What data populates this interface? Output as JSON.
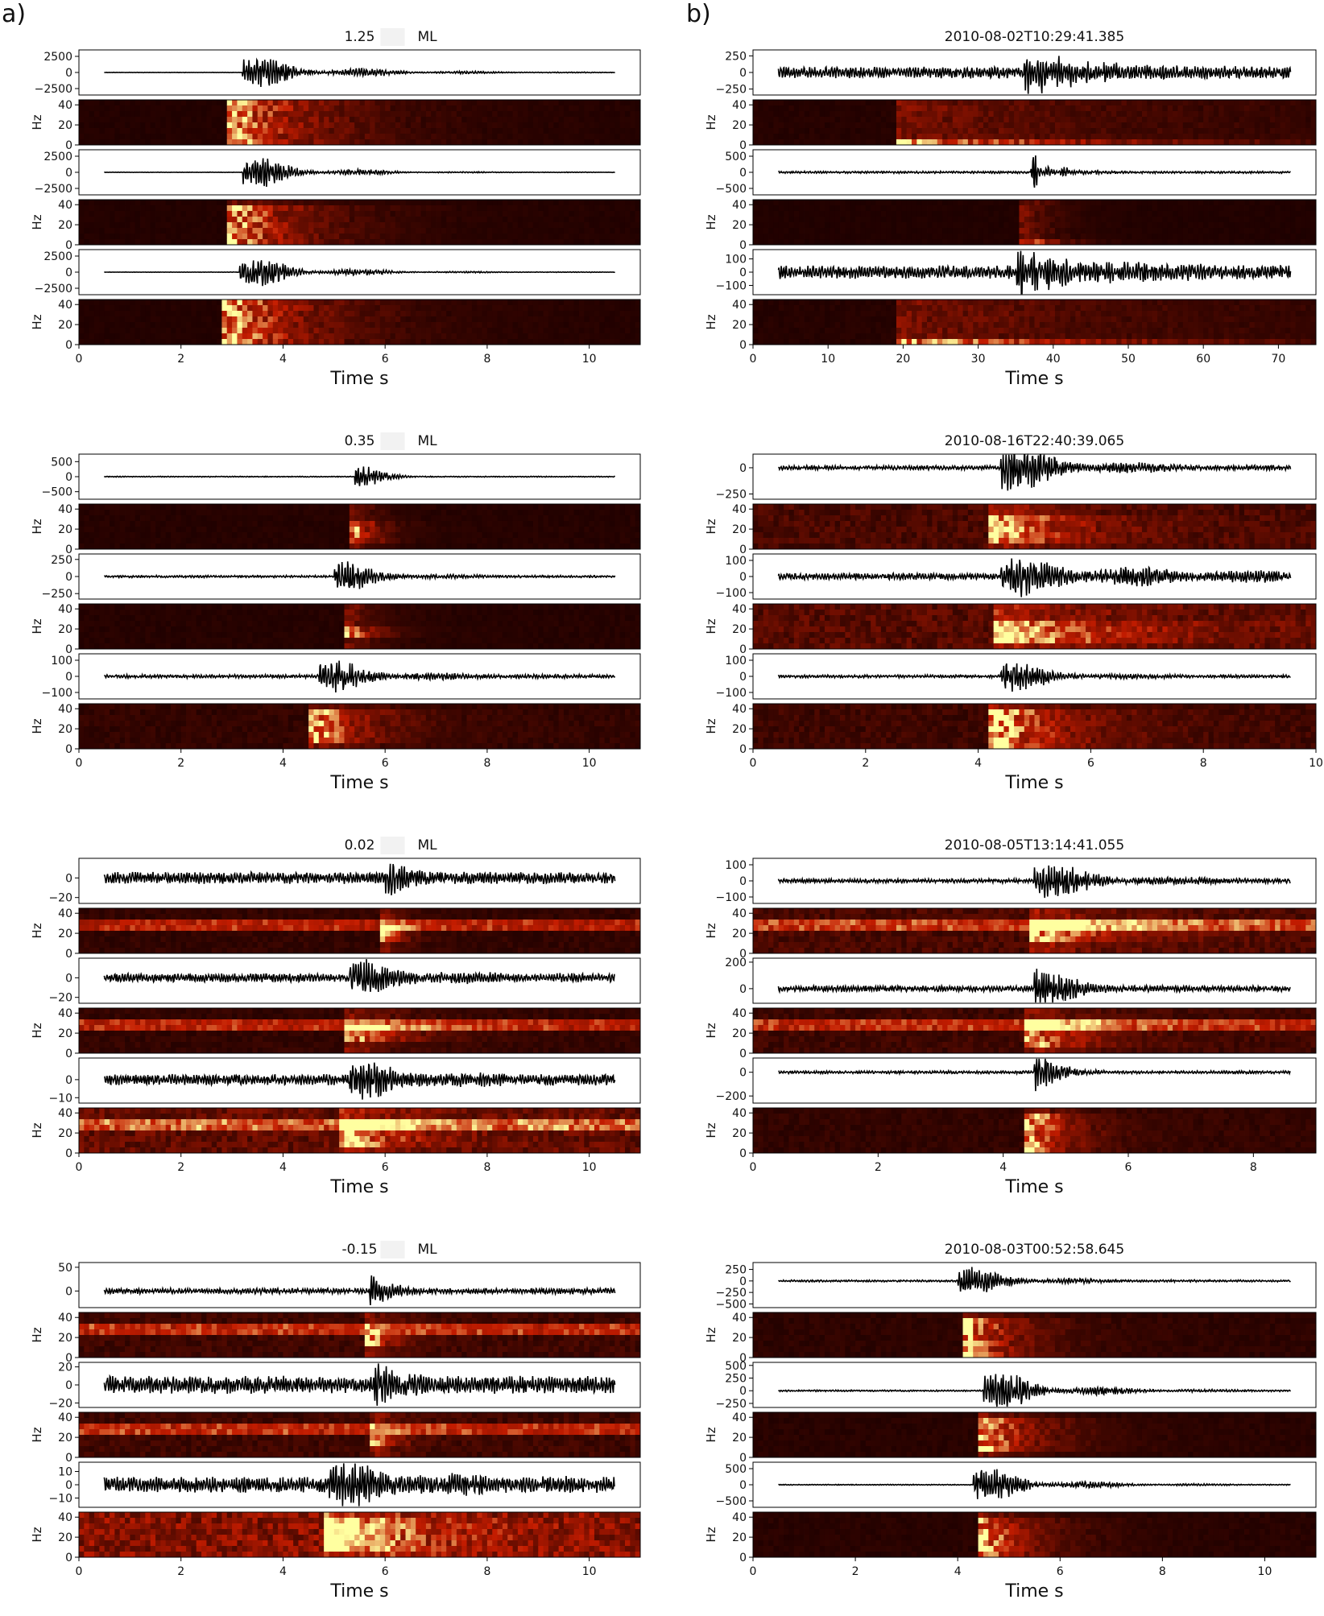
{
  "figure": {
    "panel_a_label": "a)",
    "panel_b_label": "b)"
  },
  "colors": {
    "trace": "#000000",
    "spec_low": "#1a0000",
    "spec_mid": "#c41c00",
    "spec_high": "#ffffa0"
  },
  "chart_data": [
    {
      "type": "line",
      "panel": "a",
      "title": "1.25",
      "title_suffix": "ML",
      "xlabel": "Time  s",
      "xlim": [
        0,
        11
      ],
      "xticks": [
        "0",
        "2",
        "4",
        "6",
        "8",
        "10"
      ],
      "ylabel_spectrogram": "Hz",
      "components": [
        {
          "kind": "waveform",
          "yticks": [
            "2500",
            "0",
            "−2500"
          ],
          "ylim": [
            -3500,
            3500
          ],
          "amplitude": 2800,
          "onset": 3.2,
          "decay": 1.6,
          "noise": 0.01,
          "seed": 11
        },
        {
          "kind": "spectrogram",
          "yticks": [
            "40",
            "20",
            "0"
          ],
          "onset": 3.0,
          "decay": 1.6,
          "band": [
            0,
            45
          ],
          "noise": 0.04,
          "seed": 12
        },
        {
          "kind": "waveform",
          "yticks": [
            "2500",
            "0",
            "−2500"
          ],
          "ylim": [
            -3500,
            3500
          ],
          "amplitude": 3000,
          "onset": 3.2,
          "decay": 1.2,
          "noise": 0.01,
          "seed": 13
        },
        {
          "kind": "spectrogram",
          "yticks": [
            "40",
            "20",
            "0"
          ],
          "onset": 3.0,
          "decay": 1.3,
          "band": [
            0,
            40
          ],
          "noise": 0.04,
          "seed": 14
        },
        {
          "kind": "waveform",
          "yticks": [
            "2500",
            "0",
            "−2500"
          ],
          "ylim": [
            -3500,
            3500
          ],
          "amplitude": 2800,
          "onset": 3.15,
          "decay": 1.3,
          "noise": 0.01,
          "seed": 15
        },
        {
          "kind": "spectrogram",
          "yticks": [
            "40",
            "20",
            "0"
          ],
          "onset": 2.9,
          "decay": 1.6,
          "band": [
            0,
            45
          ],
          "noise": 0.04,
          "seed": 16
        }
      ]
    },
    {
      "type": "line",
      "panel": "b",
      "title": "2010-08-02T10:29:41.385",
      "title_suffix": "",
      "xlabel": "Time  s",
      "xlim": [
        0,
        75
      ],
      "xticks": [
        "0",
        "10",
        "20",
        "30",
        "40",
        "50",
        "60",
        "70"
      ],
      "ylabel_spectrogram": "Hz",
      "components": [
        {
          "kind": "waveform",
          "yticks": [
            "250",
            "0",
            "−250"
          ],
          "ylim": [
            -340,
            340
          ],
          "amplitude": 320,
          "onset": 36,
          "decay": 8,
          "noise": 0.25,
          "seed": 21
        },
        {
          "kind": "spectrogram",
          "yticks": [
            "40",
            "20",
            "0"
          ],
          "onset": 20,
          "decay": 30,
          "band": [
            0,
            5
          ],
          "noise": 0.05,
          "seed": 22
        },
        {
          "kind": "waveform",
          "yticks": [
            "500",
            "0",
            "−500"
          ],
          "ylim": [
            -700,
            700
          ],
          "amplitude": 600,
          "onset": 37,
          "decay": 3,
          "noise": 0.05,
          "seed": 23
        },
        {
          "kind": "spectrogram",
          "yticks": [
            "40",
            "20",
            "0"
          ],
          "onset": 36,
          "decay": 4,
          "band": [
            0,
            5
          ],
          "noise": 0.03,
          "seed": 24
        },
        {
          "kind": "waveform",
          "yticks": [
            "100",
            "0",
            "−100"
          ],
          "ylim": [
            -170,
            170
          ],
          "amplitude": 150,
          "onset": 35,
          "decay": 10,
          "noise": 0.3,
          "seed": 25
        },
        {
          "kind": "spectrogram",
          "yticks": [
            "40",
            "20",
            "0"
          ],
          "onset": 20,
          "decay": 30,
          "band": [
            0,
            5
          ],
          "noise": 0.05,
          "seed": 26
        }
      ]
    },
    {
      "type": "line",
      "panel": "a",
      "title": "0.35",
      "title_suffix": "ML",
      "xlabel": "Time  s",
      "xlim": [
        0,
        11
      ],
      "xticks": [
        "0",
        "2",
        "4",
        "6",
        "8",
        "10"
      ],
      "ylabel_spectrogram": "Hz",
      "components": [
        {
          "kind": "waveform",
          "yticks": [
            "500",
            "0",
            "−500"
          ],
          "ylim": [
            -750,
            750
          ],
          "amplitude": 700,
          "onset": 5.4,
          "decay": 0.35,
          "noise": 0.02,
          "seed": 31
        },
        {
          "kind": "spectrogram",
          "yticks": [
            "40",
            "20",
            "0"
          ],
          "onset": 5.4,
          "decay": 0.4,
          "band": [
            5,
            30
          ],
          "noise": 0.05,
          "seed": 32
        },
        {
          "kind": "waveform",
          "yticks": [
            "250",
            "0",
            "−250"
          ],
          "ylim": [
            -330,
            330
          ],
          "amplitude": 300,
          "onset": 5.0,
          "decay": 0.8,
          "noise": 0.05,
          "seed": 33
        },
        {
          "kind": "spectrogram",
          "yticks": [
            "40",
            "20",
            "0"
          ],
          "onset": 5.3,
          "decay": 0.5,
          "band": [
            10,
            25
          ],
          "noise": 0.05,
          "seed": 34
        },
        {
          "kind": "waveform",
          "yticks": [
            "100",
            "0",
            "−100"
          ],
          "ylim": [
            -140,
            140
          ],
          "amplitude": 120,
          "onset": 4.7,
          "decay": 1.0,
          "noise": 0.08,
          "seed": 35
        },
        {
          "kind": "spectrogram",
          "yticks": [
            "40",
            "20",
            "0"
          ],
          "onset": 4.6,
          "decay": 1.0,
          "band": [
            5,
            40
          ],
          "noise": 0.1,
          "seed": 36
        }
      ]
    },
    {
      "type": "line",
      "panel": "b",
      "title": "2010-08-16T22:40:39.065",
      "title_suffix": "",
      "xlabel": "Time  s",
      "xlim": [
        0,
        10
      ],
      "xticks": [
        "0",
        "2",
        "4",
        "6",
        "8",
        "10"
      ],
      "ylabel_spectrogram": "Hz",
      "components": [
        {
          "kind": "waveform",
          "yticks": [
            "0",
            "−250"
          ],
          "ylim": [
            -300,
            130
          ],
          "amplitude": 260,
          "onset": 4.4,
          "decay": 1.2,
          "noise": 0.07,
          "seed": 41
        },
        {
          "kind": "spectrogram",
          "yticks": [
            "40",
            "20",
            "0"
          ],
          "onset": 4.3,
          "decay": 1.2,
          "band": [
            5,
            35
          ],
          "noise": 0.2,
          "seed": 42
        },
        {
          "kind": "waveform",
          "yticks": [
            "100",
            "0",
            "−100"
          ],
          "ylim": [
            -140,
            140
          ],
          "amplitude": 120,
          "onset": 4.4,
          "decay": 2.5,
          "noise": 0.15,
          "seed": 43
        },
        {
          "kind": "spectrogram",
          "yticks": [
            "40",
            "20",
            "0"
          ],
          "onset": 4.4,
          "decay": 2.0,
          "band": [
            5,
            30
          ],
          "noise": 0.25,
          "seed": 44
        },
        {
          "kind": "waveform",
          "yticks": [
            "100",
            "0",
            "−100"
          ],
          "ylim": [
            -140,
            140
          ],
          "amplitude": 120,
          "onset": 4.4,
          "decay": 0.8,
          "noise": 0.07,
          "seed": 45
        },
        {
          "kind": "spectrogram",
          "yticks": [
            "40",
            "20",
            "0"
          ],
          "onset": 4.3,
          "decay": 1.2,
          "band": [
            0,
            40
          ],
          "noise": 0.15,
          "seed": 46
        }
      ]
    },
    {
      "type": "line",
      "panel": "a",
      "title": "0.02",
      "title_suffix": "ML",
      "xlabel": "Time  s",
      "xlim": [
        0,
        11
      ],
      "xticks": [
        "0",
        "2",
        "4",
        "6",
        "8",
        "10"
      ],
      "ylabel_spectrogram": "Hz",
      "components": [
        {
          "kind": "waveform",
          "yticks": [
            "0",
            "−20"
          ],
          "ylim": [
            -26,
            20
          ],
          "amplitude": 22,
          "onset": 6.0,
          "decay": 0.3,
          "noise": 0.25,
          "seed": 51
        },
        {
          "kind": "spectrogram",
          "yticks": [
            "40",
            "20",
            "0"
          ],
          "onset": 6.0,
          "decay": 0.3,
          "band": [
            10,
            30
          ],
          "noise": 0.1,
          "line": 28,
          "seed": 52
        },
        {
          "kind": "waveform",
          "yticks": [
            "0",
            "−20"
          ],
          "ylim": [
            -26,
            20
          ],
          "amplitude": 20,
          "onset": 5.3,
          "decay": 1.0,
          "noise": 0.2,
          "seed": 53
        },
        {
          "kind": "spectrogram",
          "yticks": [
            "40",
            "20",
            "0"
          ],
          "onset": 5.3,
          "decay": 1.0,
          "band": [
            10,
            30
          ],
          "noise": 0.1,
          "line": 28,
          "seed": 54
        },
        {
          "kind": "waveform",
          "yticks": [
            "0",
            "−10"
          ],
          "ylim": [
            -13,
            12
          ],
          "amplitude": 11,
          "onset": 5.3,
          "decay": 1.0,
          "noise": 0.25,
          "seed": 55
        },
        {
          "kind": "spectrogram",
          "yticks": [
            "40",
            "20",
            "0"
          ],
          "onset": 5.2,
          "decay": 1.0,
          "band": [
            5,
            35
          ],
          "noise": 0.3,
          "line": 28,
          "seed": 56
        }
      ]
    },
    {
      "type": "line",
      "panel": "b",
      "title": "2010-08-05T13:14:41.055",
      "title_suffix": "",
      "xlabel": "Time  s",
      "xlim": [
        0,
        9
      ],
      "xticks": [
        "0",
        "2",
        "4",
        "6",
        "8"
      ],
      "ylabel_spectrogram": "Hz",
      "components": [
        {
          "kind": "waveform",
          "yticks": [
            "100",
            "0",
            "−100"
          ],
          "ylim": [
            -140,
            140
          ],
          "amplitude": 120,
          "onset": 4.5,
          "decay": 1.0,
          "noise": 0.1,
          "seed": 61
        },
        {
          "kind": "spectrogram",
          "yticks": [
            "40",
            "20",
            "0"
          ],
          "onset": 4.5,
          "decay": 1.2,
          "band": [
            10,
            35
          ],
          "noise": 0.2,
          "line": 28,
          "seed": 62
        },
        {
          "kind": "waveform",
          "yticks": [
            "200",
            "0"
          ],
          "ylim": [
            -110,
            230
          ],
          "amplitude": 200,
          "onset": 4.5,
          "decay": 0.5,
          "noise": 0.1,
          "seed": 63
        },
        {
          "kind": "spectrogram",
          "yticks": [
            "40",
            "20",
            "0"
          ],
          "onset": 4.45,
          "decay": 0.8,
          "band": [
            5,
            35
          ],
          "noise": 0.15,
          "line": 28,
          "seed": 64
        },
        {
          "kind": "waveform",
          "yticks": [
            "0",
            "−200"
          ],
          "ylim": [
            -260,
            120
          ],
          "amplitude": 220,
          "onset": 4.5,
          "decay": 0.3,
          "noise": 0.05,
          "seed": 65
        },
        {
          "kind": "spectrogram",
          "yticks": [
            "40",
            "20",
            "0"
          ],
          "onset": 4.45,
          "decay": 0.6,
          "band": [
            0,
            40
          ],
          "noise": 0.1,
          "seed": 66
        }
      ]
    },
    {
      "type": "line",
      "panel": "a",
      "title": "-0.15",
      "title_suffix": "ML",
      "xlabel": "Time  s",
      "xlim": [
        0,
        11
      ],
      "xticks": [
        "0",
        "2",
        "4",
        "6",
        "8",
        "10"
      ],
      "ylabel_spectrogram": "Hz",
      "components": [
        {
          "kind": "waveform",
          "yticks": [
            "50",
            "0"
          ],
          "ylim": [
            -35,
            60
          ],
          "amplitude": 45,
          "onset": 5.7,
          "decay": 0.3,
          "noise": 0.12,
          "seed": 71
        },
        {
          "kind": "spectrogram",
          "yticks": [
            "40",
            "20",
            "0"
          ],
          "onset": 5.7,
          "decay": 0.4,
          "band": [
            10,
            25
          ],
          "noise": 0.15,
          "line": 28,
          "seed": 72
        },
        {
          "kind": "waveform",
          "yticks": [
            "20",
            "0",
            "−20"
          ],
          "ylim": [
            -25,
            25
          ],
          "amplitude": 22,
          "onset": 5.8,
          "decay": 0.4,
          "noise": 0.4,
          "seed": 73
        },
        {
          "kind": "spectrogram",
          "yticks": [
            "40",
            "20",
            "0"
          ],
          "onset": 5.8,
          "decay": 0.4,
          "band": [
            10,
            25
          ],
          "noise": 0.15,
          "line": 28,
          "seed": 74
        },
        {
          "kind": "waveform",
          "yticks": [
            "10",
            "0",
            "−10"
          ],
          "ylim": [
            -17,
            17
          ],
          "amplitude": 15,
          "onset": 4.9,
          "decay": 1.5,
          "noise": 0.35,
          "seed": 75
        },
        {
          "kind": "spectrogram",
          "yticks": [
            "40",
            "20",
            "0"
          ],
          "onset": 4.9,
          "decay": 1.5,
          "band": [
            5,
            40
          ],
          "noise": 0.45,
          "seed": 76
        }
      ]
    },
    {
      "type": "line",
      "panel": "b",
      "title": "2010-08-03T00:52:58.645",
      "title_suffix": "",
      "xlabel": "Time  s",
      "xlim": [
        0,
        11
      ],
      "xticks": [
        "0",
        "2",
        "4",
        "6",
        "8",
        "10"
      ],
      "ylabel_spectrogram": "Hz",
      "components": [
        {
          "kind": "waveform",
          "yticks": [
            "250",
            "0",
            "−250",
            "−500"
          ],
          "ylim": [
            -580,
            400
          ],
          "amplitude": 380,
          "onset": 4.0,
          "decay": 1.0,
          "noise": 0.05,
          "seed": 81
        },
        {
          "kind": "spectrogram",
          "yticks": [
            "40",
            "20",
            "0"
          ],
          "onset": 4.2,
          "decay": 0.9,
          "band": [
            0,
            40
          ],
          "noise": 0.08,
          "seed": 82
        },
        {
          "kind": "waveform",
          "yticks": [
            "500",
            "250",
            "0",
            "−250"
          ],
          "ylim": [
            -330,
            560
          ],
          "amplitude": 480,
          "onset": 4.5,
          "decay": 1.2,
          "noise": 0.03,
          "seed": 83
        },
        {
          "kind": "spectrogram",
          "yticks": [
            "40",
            "20",
            "0"
          ],
          "onset": 4.5,
          "decay": 1.0,
          "band": [
            5,
            40
          ],
          "noise": 0.06,
          "seed": 84
        },
        {
          "kind": "waveform",
          "yticks": [
            "500",
            "0",
            "−500"
          ],
          "ylim": [
            -700,
            700
          ],
          "amplitude": 650,
          "onset": 4.3,
          "decay": 1.2,
          "noise": 0.02,
          "seed": 85
        },
        {
          "kind": "spectrogram",
          "yticks": [
            "40",
            "20",
            "0"
          ],
          "onset": 4.5,
          "decay": 0.9,
          "band": [
            0,
            40
          ],
          "noise": 0.06,
          "seed": 86
        }
      ]
    }
  ]
}
